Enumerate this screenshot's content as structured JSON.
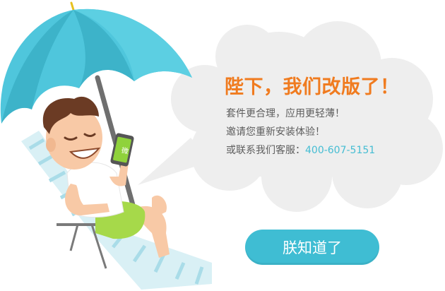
{
  "dialog": {
    "headline": "陛下，我们改版了！",
    "lines": [
      "套件更合理，应用更轻薄！",
      "邀请您重新安装体验！"
    ],
    "contact_label": "或联系我们客服：",
    "phone": "400-607-5151",
    "confirm_button": "朕知道了"
  },
  "phone_screen_icon_text": "微",
  "colors": {
    "accent": "#3fbdd3",
    "headline": "#f07b1f",
    "umbrella": "#4fc6dc",
    "cloud": "#eeeeee"
  },
  "icons": {
    "umbrella": "umbrella-illustration",
    "phone": "phone-icon"
  }
}
